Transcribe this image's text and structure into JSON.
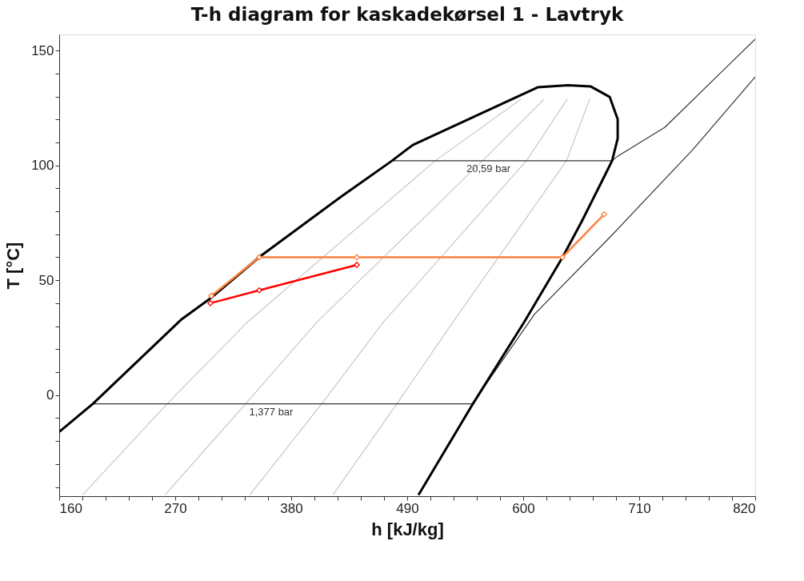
{
  "chart_data": {
    "type": "line",
    "title": "T-h diagram for kaskadekørsel 1 - Lavtryk",
    "xlabel": "h [kJ/kg]",
    "ylabel": "T [°C]",
    "xlim": [
      160,
      820
    ],
    "ylim": [
      -44,
      157
    ],
    "xticks": [
      160,
      {
        "value": 182,
        "label": null
      },
      {
        "value": 204,
        "label": null
      },
      {
        "value": 226,
        "label": null
      },
      {
        "value": 248,
        "label": null
      },
      270,
      {
        "value": 292,
        "label": null
      },
      {
        "value": 314,
        "label": null
      },
      {
        "value": 336,
        "label": null
      },
      {
        "value": 358,
        "label": null
      },
      380,
      {
        "value": 402,
        "label": null
      },
      {
        "value": 424,
        "label": null
      },
      {
        "value": 446,
        "label": null
      },
      {
        "value": 468,
        "label": null
      },
      490,
      {
        "value": 512,
        "label": null
      },
      {
        "value": 534,
        "label": null
      },
      {
        "value": 556,
        "label": null
      },
      {
        "value": 578,
        "label": null
      },
      600,
      {
        "value": 622,
        "label": null
      },
      {
        "value": 644,
        "label": null
      },
      {
        "value": 666,
        "label": null
      },
      {
        "value": 688,
        "label": null
      },
      710,
      {
        "value": 732,
        "label": null
      },
      {
        "value": 754,
        "label": null
      },
      {
        "value": 776,
        "label": null
      },
      {
        "value": 798,
        "label": null
      },
      820
    ],
    "yticks": [
      {
        "value": -40,
        "label": null
      },
      {
        "value": -30,
        "label": null
      },
      {
        "value": -20,
        "label": null
      },
      {
        "value": -10,
        "label": null
      },
      0,
      {
        "value": 10,
        "label": null
      },
      {
        "value": 20,
        "label": null
      },
      {
        "value": 30,
        "label": null
      },
      {
        "value": 40,
        "label": null
      },
      50,
      {
        "value": 60,
        "label": null
      },
      {
        "value": 70,
        "label": null
      },
      {
        "value": 80,
        "label": null
      },
      {
        "value": 90,
        "label": null
      },
      100,
      {
        "value": 110,
        "label": null
      },
      {
        "value": 120,
        "label": null
      },
      {
        "value": 130,
        "label": null
      },
      {
        "value": 140,
        "label": null
      },
      150
    ],
    "grid": false,
    "series": [
      {
        "color": "#c8c8c8",
        "marker": "none",
        "x": [
          182.0,
          262.4,
          338.3,
          516.6,
          597.8
        ],
        "values": [
          -43.5,
          -3.8,
          31.7,
          102.0,
          128.8
        ]
      },
      {
        "color": "#c8c8c8",
        "marker": "none",
        "x": [
          260.2,
          336.8,
          404.3,
          561.4,
          619.8
        ],
        "values": [
          -43.5,
          -3.8,
          31.7,
          102.0,
          128.8
        ]
      },
      {
        "color": "#c8c8c8",
        "marker": "none",
        "x": [
          340.6,
          408.9,
          467.3,
          603.1,
          641.8
        ],
        "values": [
          -43.5,
          -3.8,
          31.7,
          102.0,
          128.8
        ]
      },
      {
        "color": "#c8c8c8",
        "marker": "none",
        "x": [
          419.5,
          480.2,
          533.3,
          641.0,
          663.0
        ],
        "values": [
          -43.5,
          -3.8,
          31.7,
          102.0,
          128.8
        ]
      },
      {
        "color": "#333333",
        "marker": "none",
        "x": [
          475.6,
          684.3,
          689.6,
          734.4,
          792.0,
          820.0
        ],
        "values": [
          102.0,
          102.0,
          104.0,
          116.6,
          142.4,
          154.9
        ]
      },
      {
        "color": "#333333",
        "marker": "none",
        "x": [
          191.9,
          552.3,
          564.4,
          610.7,
          682.0,
          760.9,
          820.0
        ],
        "values": [
          -3.8,
          -3.8,
          4.5,
          35.2,
          68.6,
          106.9,
          138.5
        ]
      },
      {
        "color": "#000000",
        "marker": "none",
        "x": [
          160.0,
          191.9,
          275.3,
          303.4,
          351.2,
          427.1,
          475.6,
          495.4,
          613.7,
          642.6,
          663.8,
          682.0,
          689.6,
          689.6,
          684.3,
          675.2,
          655.4,
          637.2,
          600.8,
          552.3,
          500.7
        ],
        "values": [
          -16.0,
          -3.8,
          32.7,
          42.1,
          60.6,
          86.3,
          102.0,
          108.9,
          134.0,
          134.9,
          134.4,
          129.8,
          120.1,
          111.7,
          102.0,
          93.6,
          75.5,
          59.9,
          31.7,
          -3.8,
          -43.5
        ]
      },
      {
        "color": "#ff8040",
        "marker": "diamond",
        "x": [
          304.2,
          349.7,
          442.2,
          637.2,
          676.7
        ],
        "values": [
          43.2,
          60.0,
          60.0,
          60.0,
          78.7
        ]
      },
      {
        "color": "#ff0000",
        "marker": "diamond",
        "x": [
          303.4,
          349.7,
          442.2
        ],
        "values": [
          40.0,
          45.6,
          56.7
        ]
      }
    ],
    "annotations": [
      {
        "text": "20,59 bar",
        "x": 567,
        "y": 102.0
      },
      {
        "text": "1,377 bar",
        "x": 361,
        "y": -3.8
      }
    ]
  }
}
